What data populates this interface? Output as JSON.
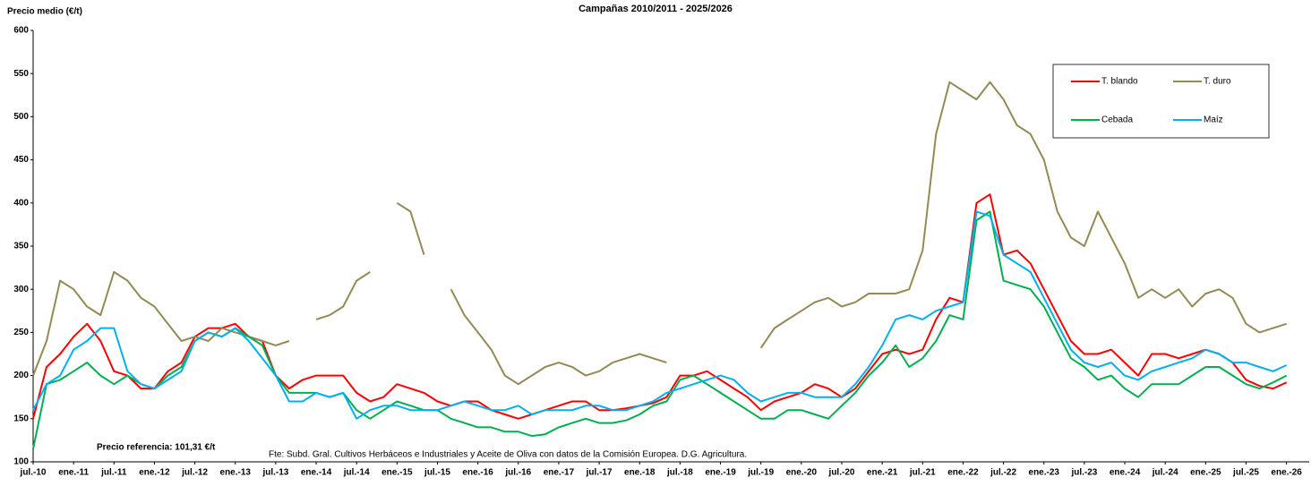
{
  "chart_data": {
    "type": "line",
    "title": "Campañas 2010/2011 - 2025/2026",
    "y_label": "Precio medio (€/t)",
    "annotation": "Precio referencia: 101,31 €/t",
    "source": "Fte: Subd. Gral. Cultivos Herbáceos e Industriales  y Aceite de Oliva con datos de la Comisión Europea. D.G. Agricultura.",
    "categories": [
      "jul.-10",
      null,
      null,
      "ene.-11",
      null,
      null,
      "jul.-11",
      null,
      null,
      "ene.-12",
      null,
      null,
      "jul.-12",
      null,
      null,
      "ene.-13",
      null,
      null,
      "jul.-13",
      null,
      null,
      "ene.-14",
      null,
      null,
      "jul.-14",
      null,
      null,
      "ene.-15",
      null,
      null,
      "jul.-15",
      null,
      null,
      "ene.-16",
      null,
      null,
      "jul.-16",
      null,
      null,
      "ene.-17",
      null,
      null,
      "jul.-17",
      null,
      null,
      "ene.-18",
      null,
      null,
      "jul.-18",
      null,
      null,
      "ene.-19",
      null,
      null,
      "jul.-19",
      null,
      null,
      "ene.-20",
      null,
      null,
      "jul.-20",
      null,
      null,
      "ene.-21",
      null,
      null,
      "jul.-21",
      null,
      null,
      "ene.-22",
      null,
      null,
      "jul.-22",
      null,
      null,
      "ene.-23",
      null,
      null,
      "jul.-23",
      null,
      null,
      "ene.-24",
      null,
      null,
      "jul.-24",
      null,
      null,
      "ene.-25",
      null,
      null,
      "jul.-25",
      null,
      null,
      "ene.-26"
    ],
    "series": [
      {
        "name": "T. blando",
        "color": "#ff0000",
        "values": [
          150,
          210,
          225,
          245,
          260,
          240,
          205,
          200,
          185,
          185,
          205,
          215,
          245,
          255,
          255,
          260,
          245,
          240,
          200,
          185,
          195,
          200,
          200,
          200,
          180,
          170,
          175,
          190,
          185,
          180,
          170,
          165,
          170,
          170,
          160,
          155,
          150,
          155,
          160,
          165,
          170,
          170,
          160,
          160,
          162,
          165,
          168,
          175,
          200,
          200,
          205,
          195,
          185,
          175,
          160,
          170,
          175,
          180,
          190,
          185,
          175,
          185,
          205,
          225,
          230,
          225,
          230,
          265,
          290,
          285,
          400,
          410,
          340,
          345,
          330,
          300,
          270,
          240,
          225,
          225,
          230,
          215,
          200,
          225,
          225,
          220,
          225,
          230,
          225,
          215,
          195,
          188,
          185,
          192
        ]
      },
      {
        "name": "T. duro",
        "color": "#948a54",
        "values": [
          200,
          240,
          310,
          300,
          280,
          270,
          320,
          310,
          290,
          280,
          260,
          240,
          245,
          240,
          255,
          250,
          245,
          240,
          235,
          240,
          null,
          265,
          270,
          280,
          310,
          320,
          null,
          400,
          390,
          340,
          null,
          300,
          270,
          250,
          230,
          200,
          190,
          200,
          210,
          215,
          210,
          200,
          205,
          215,
          220,
          225,
          220,
          215,
          null,
          null,
          null,
          null,
          null,
          null,
          232,
          255,
          265,
          275,
          285,
          290,
          280,
          285,
          295,
          295,
          295,
          300,
          345,
          480,
          540,
          530,
          520,
          540,
          520,
          490,
          480,
          450,
          390,
          360,
          350,
          390,
          360,
          330,
          290,
          300,
          290,
          300,
          280,
          295,
          300,
          290,
          260,
          250,
          255,
          260
        ]
      },
      {
        "name": "Cebada",
        "color": "#00b050",
        "values": [
          115,
          190,
          195,
          205,
          215,
          200,
          190,
          200,
          190,
          185,
          200,
          210,
          240,
          250,
          245,
          255,
          245,
          235,
          200,
          180,
          180,
          180,
          175,
          180,
          160,
          150,
          160,
          170,
          165,
          160,
          160,
          150,
          145,
          140,
          140,
          135,
          135,
          130,
          132,
          140,
          145,
          150,
          145,
          145,
          148,
          155,
          165,
          170,
          195,
          200,
          190,
          180,
          170,
          160,
          150,
          150,
          160,
          160,
          155,
          150,
          165,
          180,
          200,
          215,
          235,
          210,
          220,
          240,
          270,
          265,
          380,
          390,
          310,
          305,
          300,
          280,
          250,
          220,
          210,
          195,
          200,
          185,
          175,
          190,
          190,
          190,
          200,
          210,
          210,
          200,
          190,
          185,
          192,
          200
        ]
      },
      {
        "name": "Maíz",
        "color": "#00b0f0",
        "values": [
          160,
          190,
          200,
          230,
          240,
          255,
          255,
          205,
          190,
          185,
          195,
          205,
          240,
          250,
          245,
          255,
          240,
          220,
          200,
          170,
          170,
          180,
          175,
          180,
          150,
          160,
          165,
          165,
          160,
          160,
          160,
          165,
          170,
          165,
          160,
          160,
          165,
          155,
          160,
          160,
          160,
          165,
          165,
          160,
          160,
          165,
          170,
          180,
          185,
          190,
          195,
          200,
          195,
          180,
          170,
          175,
          180,
          180,
          175,
          175,
          175,
          190,
          210,
          235,
          265,
          270,
          265,
          275,
          280,
          285,
          390,
          385,
          340,
          330,
          320,
          290,
          260,
          230,
          215,
          210,
          215,
          200,
          195,
          205,
          210,
          215,
          220,
          230,
          225,
          215,
          215,
          210,
          205,
          212
        ]
      }
    ],
    "ylim": [
      100,
      600
    ],
    "yticks": [
      100,
      150,
      200,
      250,
      300,
      350,
      400,
      450,
      500,
      550,
      600
    ],
    "grid": false
  }
}
